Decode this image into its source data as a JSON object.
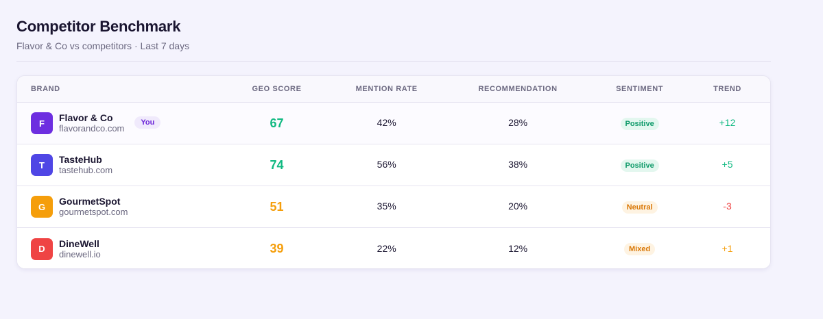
{
  "header": {
    "title": "Competitor Benchmark",
    "subtitle": "Flavor & Co vs competitors · Last 7 days"
  },
  "table": {
    "columns": [
      "Brand",
      "GEO Score",
      "Mention Rate",
      "Recommendation",
      "Sentiment",
      "Trend"
    ],
    "you_label": "You",
    "rows": [
      {
        "initial": "F",
        "avatar_color": "#6d2ee0",
        "name": "Flavor & Co",
        "domain": "flavorandco.com",
        "is_you": true,
        "geo_score": "67",
        "geo_color": "#10b981",
        "mention_rate": "42%",
        "recommendation": "28%",
        "sentiment": "Positive",
        "sentiment_fg": "#0f9a6a",
        "sentiment_bg": "#e3f7ef",
        "trend": "+12",
        "trend_color": "#10b981"
      },
      {
        "initial": "T",
        "avatar_color": "#4f46e5",
        "name": "TasteHub",
        "domain": "tastehub.com",
        "is_you": false,
        "geo_score": "74",
        "geo_color": "#10b981",
        "mention_rate": "56%",
        "recommendation": "38%",
        "sentiment": "Positive",
        "sentiment_fg": "#0f9a6a",
        "sentiment_bg": "#e3f7ef",
        "trend": "+5",
        "trend_color": "#10b981"
      },
      {
        "initial": "G",
        "avatar_color": "#f59e0b",
        "name": "GourmetSpot",
        "domain": "gourmetspot.com",
        "is_you": false,
        "geo_score": "51",
        "geo_color": "#f59e0b",
        "mention_rate": "35%",
        "recommendation": "20%",
        "sentiment": "Neutral",
        "sentiment_fg": "#d97706",
        "sentiment_bg": "#fef3e2",
        "trend": "-3",
        "trend_color": "#ef4444"
      },
      {
        "initial": "D",
        "avatar_color": "#ef4444",
        "name": "DineWell",
        "domain": "dinewell.io",
        "is_you": false,
        "geo_score": "39",
        "geo_color": "#f59e0b",
        "mention_rate": "22%",
        "recommendation": "12%",
        "sentiment": "Mixed",
        "sentiment_fg": "#d97706",
        "sentiment_bg": "#fef3e2",
        "trend": "+1",
        "trend_color": "#f59e0b"
      }
    ]
  }
}
